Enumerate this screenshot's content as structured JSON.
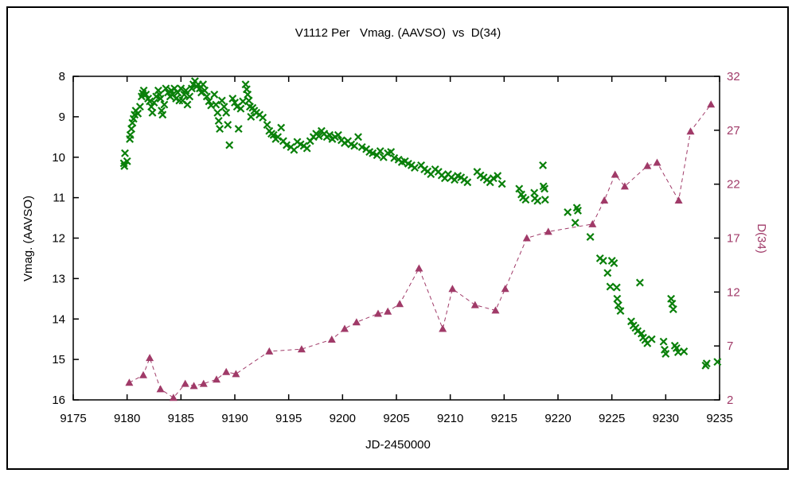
{
  "title": "V1112 Per   Vmag. (AAVSO)  vs  D(34)",
  "chart_data": {
    "type": "scatter",
    "title": "V1112 Per   Vmag. (AAVSO)  vs  D(34)",
    "xlabel": "JD-2450000",
    "ylabel_left": "Vmag. (AAVSO)",
    "ylabel_right": "D(34)",
    "xlim": [
      9175,
      9235
    ],
    "ylim_left": [
      8,
      16
    ],
    "ylim_left_inverted": true,
    "ylim_right": [
      2,
      32
    ],
    "x_ticks": [
      9175,
      9180,
      9185,
      9190,
      9195,
      9200,
      9205,
      9210,
      9215,
      9220,
      9225,
      9230,
      9235
    ],
    "y_ticks_left": [
      8,
      9,
      10,
      11,
      12,
      13,
      14,
      15,
      16
    ],
    "y_ticks_right": [
      2,
      7,
      12,
      17,
      22,
      27,
      32
    ],
    "grid": false,
    "legend_position": "none",
    "colors": {
      "vmag": "#0a800a",
      "d34": "#a03a68",
      "axis": "#000000"
    },
    "series": [
      {
        "name": "Vmag. (AAVSO)",
        "axis": "left",
        "marker": "x",
        "line": "none",
        "color": "#0a800a",
        "points": [
          [
            9179.7,
            10.15
          ],
          [
            9179.75,
            10.22
          ],
          [
            9179.8,
            9.9
          ],
          [
            9180.0,
            10.1
          ],
          [
            9180.25,
            9.55
          ],
          [
            9180.3,
            9.45
          ],
          [
            9180.4,
            9.3
          ],
          [
            9180.5,
            9.15
          ],
          [
            9180.6,
            9.05
          ],
          [
            9180.7,
            8.95
          ],
          [
            9180.8,
            8.85
          ],
          [
            9181.0,
            8.92
          ],
          [
            9181.2,
            8.75
          ],
          [
            9181.35,
            8.5
          ],
          [
            9181.45,
            8.42
          ],
          [
            9181.55,
            8.35
          ],
          [
            9181.75,
            8.45
          ],
          [
            9181.95,
            8.55
          ],
          [
            9182.1,
            8.62
          ],
          [
            9182.25,
            8.75
          ],
          [
            9182.35,
            8.9
          ],
          [
            9182.5,
            8.65
          ],
          [
            9182.7,
            8.5
          ],
          [
            9182.9,
            8.35
          ],
          [
            9183.0,
            8.45
          ],
          [
            9183.1,
            8.55
          ],
          [
            9183.2,
            8.85
          ],
          [
            9183.3,
            8.95
          ],
          [
            9183.45,
            8.7
          ],
          [
            9183.6,
            8.3
          ],
          [
            9183.8,
            8.4
          ],
          [
            9184.0,
            8.5
          ],
          [
            9184.1,
            8.35
          ],
          [
            9184.25,
            8.45
          ],
          [
            9184.4,
            8.3
          ],
          [
            9184.55,
            8.55
          ],
          [
            9184.7,
            8.4
          ],
          [
            9184.85,
            8.6
          ],
          [
            9185.0,
            8.3
          ],
          [
            9185.15,
            8.6
          ],
          [
            9185.3,
            8.45
          ],
          [
            9185.45,
            8.35
          ],
          [
            9185.6,
            8.7
          ],
          [
            9185.8,
            8.5
          ],
          [
            9186.0,
            8.3
          ],
          [
            9186.15,
            8.2
          ],
          [
            9186.3,
            8.12
          ],
          [
            9186.45,
            8.25
          ],
          [
            9186.6,
            8.2
          ],
          [
            9186.75,
            8.3
          ],
          [
            9186.9,
            8.4
          ],
          [
            9187.05,
            8.2
          ],
          [
            9187.2,
            8.35
          ],
          [
            9187.4,
            8.5
          ],
          [
            9187.6,
            8.62
          ],
          [
            9187.8,
            8.72
          ],
          [
            9188.1,
            8.45
          ],
          [
            9188.25,
            8.7
          ],
          [
            9188.4,
            8.9
          ],
          [
            9188.5,
            9.1
          ],
          [
            9188.6,
            9.3
          ],
          [
            9188.8,
            8.6
          ],
          [
            9189.0,
            8.75
          ],
          [
            9189.2,
            8.9
          ],
          [
            9189.35,
            9.2
          ],
          [
            9189.5,
            9.7
          ],
          [
            9189.8,
            8.55
          ],
          [
            9190.0,
            8.65
          ],
          [
            9190.2,
            8.75
          ],
          [
            9190.35,
            9.3
          ],
          [
            9190.55,
            8.8
          ],
          [
            9190.75,
            8.62
          ],
          [
            9191.0,
            8.2
          ],
          [
            9191.1,
            8.32
          ],
          [
            9191.2,
            8.45
          ],
          [
            9191.3,
            8.6
          ],
          [
            9191.4,
            8.75
          ],
          [
            9191.5,
            9.0
          ],
          [
            9191.65,
            8.78
          ],
          [
            9191.8,
            8.85
          ],
          [
            9192.0,
            8.9
          ],
          [
            9192.3,
            8.95
          ],
          [
            9192.6,
            9.02
          ],
          [
            9193.0,
            9.2
          ],
          [
            9193.2,
            9.35
          ],
          [
            9193.4,
            9.42
          ],
          [
            9193.6,
            9.45
          ],
          [
            9193.8,
            9.55
          ],
          [
            9194.0,
            9.5
          ],
          [
            9194.3,
            9.27
          ],
          [
            9194.5,
            9.6
          ],
          [
            9194.8,
            9.7
          ],
          [
            9195.2,
            9.75
          ],
          [
            9195.5,
            9.82
          ],
          [
            9195.8,
            9.62
          ],
          [
            9196.1,
            9.68
          ],
          [
            9196.4,
            9.72
          ],
          [
            9196.7,
            9.78
          ],
          [
            9197.0,
            9.6
          ],
          [
            9197.3,
            9.5
          ],
          [
            9197.55,
            9.42
          ],
          [
            9197.8,
            9.48
          ],
          [
            9198.05,
            9.35
          ],
          [
            9198.3,
            9.42
          ],
          [
            9198.55,
            9.5
          ],
          [
            9198.8,
            9.45
          ],
          [
            9199.05,
            9.55
          ],
          [
            9199.3,
            9.5
          ],
          [
            9199.6,
            9.45
          ],
          [
            9199.9,
            9.58
          ],
          [
            9200.2,
            9.65
          ],
          [
            9200.5,
            9.6
          ],
          [
            9200.8,
            9.68
          ],
          [
            9201.1,
            9.72
          ],
          [
            9201.45,
            9.5
          ],
          [
            9201.8,
            9.75
          ],
          [
            9202.2,
            9.8
          ],
          [
            9202.5,
            9.87
          ],
          [
            9202.8,
            9.9
          ],
          [
            9203.2,
            9.95
          ],
          [
            9203.5,
            9.85
          ],
          [
            9203.8,
            10.0
          ],
          [
            9204.2,
            9.9
          ],
          [
            9204.5,
            9.87
          ],
          [
            9204.8,
            10.02
          ],
          [
            9205.2,
            10.06
          ],
          [
            9205.5,
            10.12
          ],
          [
            9205.8,
            10.1
          ],
          [
            9206.1,
            10.16
          ],
          [
            9206.4,
            10.2
          ],
          [
            9206.7,
            10.26
          ],
          [
            9207.3,
            10.2
          ],
          [
            9207.6,
            10.3
          ],
          [
            9207.9,
            10.35
          ],
          [
            9208.2,
            10.42
          ],
          [
            9208.6,
            10.3
          ],
          [
            9208.9,
            10.36
          ],
          [
            9209.2,
            10.45
          ],
          [
            9209.5,
            10.52
          ],
          [
            9209.8,
            10.42
          ],
          [
            9210.1,
            10.5
          ],
          [
            9210.4,
            10.56
          ],
          [
            9210.7,
            10.46
          ],
          [
            9211.0,
            10.5
          ],
          [
            9211.3,
            10.56
          ],
          [
            9211.6,
            10.62
          ],
          [
            9212.5,
            10.36
          ],
          [
            9212.8,
            10.45
          ],
          [
            9213.1,
            10.5
          ],
          [
            9213.4,
            10.56
          ],
          [
            9213.7,
            10.62
          ],
          [
            9214.0,
            10.52
          ],
          [
            9214.4,
            10.46
          ],
          [
            9214.8,
            10.66
          ],
          [
            9216.4,
            10.78
          ],
          [
            9216.6,
            10.92
          ],
          [
            9216.75,
            11.0
          ],
          [
            9217.0,
            11.05
          ],
          [
            9217.8,
            10.88
          ],
          [
            9217.85,
            11.02
          ],
          [
            9218.1,
            11.08
          ],
          [
            9218.6,
            10.2
          ],
          [
            9218.65,
            10.72
          ],
          [
            9218.75,
            10.78
          ],
          [
            9218.8,
            11.05
          ],
          [
            9220.9,
            11.36
          ],
          [
            9221.6,
            11.62
          ],
          [
            9221.75,
            11.25
          ],
          [
            9221.85,
            11.32
          ],
          [
            9223.0,
            11.97
          ],
          [
            9223.9,
            12.5
          ],
          [
            9224.2,
            12.56
          ],
          [
            9224.6,
            12.86
          ],
          [
            9224.85,
            13.2
          ],
          [
            9225.0,
            12.56
          ],
          [
            9225.2,
            12.62
          ],
          [
            9225.45,
            13.22
          ],
          [
            9225.5,
            13.5
          ],
          [
            9225.6,
            13.66
          ],
          [
            9225.8,
            13.8
          ],
          [
            9226.8,
            14.06
          ],
          [
            9227.0,
            14.16
          ],
          [
            9227.2,
            14.22
          ],
          [
            9227.4,
            14.3
          ],
          [
            9227.6,
            13.1
          ],
          [
            9227.75,
            14.36
          ],
          [
            9227.9,
            14.46
          ],
          [
            9228.1,
            14.52
          ],
          [
            9228.3,
            14.6
          ],
          [
            9228.7,
            14.5
          ],
          [
            9229.8,
            14.56
          ],
          [
            9229.9,
            14.76
          ],
          [
            9230.0,
            14.86
          ],
          [
            9230.5,
            13.5
          ],
          [
            9230.6,
            13.62
          ],
          [
            9230.7,
            13.76
          ],
          [
            9230.85,
            14.66
          ],
          [
            9231.0,
            14.72
          ],
          [
            9231.15,
            14.82
          ],
          [
            9231.7,
            14.8
          ],
          [
            9233.7,
            15.15
          ],
          [
            9233.8,
            15.1
          ],
          [
            9234.8,
            15.06
          ]
        ]
      },
      {
        "name": "D(34)",
        "axis": "right",
        "marker": "triangle-filled",
        "line": "dashed",
        "color": "#a03a68",
        "points": [
          [
            9180.2,
            3.6
          ],
          [
            9181.5,
            4.3
          ],
          [
            9182.1,
            5.9
          ],
          [
            9183.1,
            3.0
          ],
          [
            9184.3,
            2.2
          ],
          [
            9185.4,
            3.5
          ],
          [
            9186.2,
            3.3
          ],
          [
            9187.1,
            3.5
          ],
          [
            9188.3,
            3.9
          ],
          [
            9189.2,
            4.6
          ],
          [
            9190.1,
            4.4
          ],
          [
            9193.2,
            6.5
          ],
          [
            9196.2,
            6.7
          ],
          [
            9199.0,
            7.6
          ],
          [
            9200.2,
            8.6
          ],
          [
            9201.3,
            9.2
          ],
          [
            9203.3,
            10.0
          ],
          [
            9204.2,
            10.2
          ],
          [
            9205.3,
            10.9
          ],
          [
            9207.1,
            14.2
          ],
          [
            9209.3,
            8.6
          ],
          [
            9210.2,
            12.3
          ],
          [
            9212.3,
            10.8
          ],
          [
            9214.2,
            10.3
          ],
          [
            9215.1,
            12.3
          ],
          [
            9217.1,
            17.0
          ],
          [
            9219.1,
            17.6
          ],
          [
            9223.2,
            18.3
          ],
          [
            9224.3,
            20.5
          ],
          [
            9225.3,
            22.9
          ],
          [
            9226.2,
            21.8
          ],
          [
            9228.3,
            23.7
          ],
          [
            9229.2,
            24.0
          ],
          [
            9231.2,
            20.5
          ],
          [
            9232.3,
            26.9
          ],
          [
            9234.2,
            29.4
          ]
        ]
      }
    ]
  }
}
